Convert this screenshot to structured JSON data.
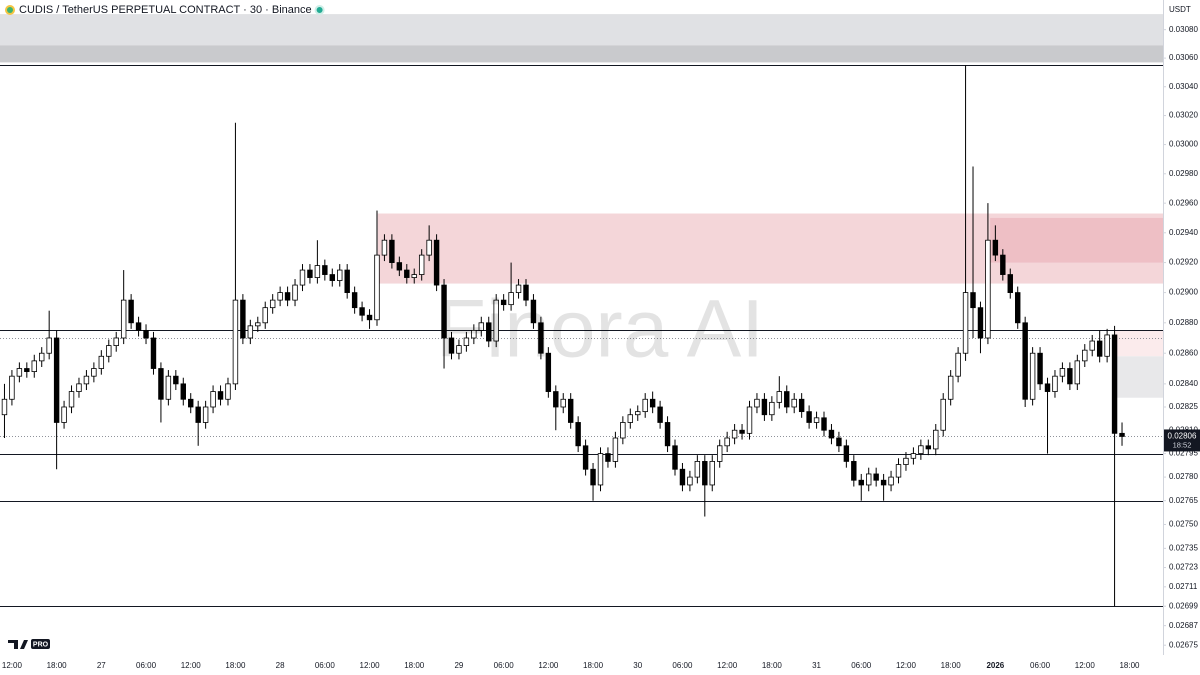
{
  "chart_data": {
    "type": "candlestick",
    "title": "CUDIS / TetherUS PERPETUAL CONTRACT · 30 · Binance",
    "y_unit": "USDT",
    "watermark": "Finora AI",
    "logo_badge": "PRO",
    "countdown": "18:52",
    "log_scale": true,
    "grid": false,
    "up_color": "#ffffff",
    "down_color": "#000000",
    "xlim": [
      -1.6,
      154.5
    ],
    "ylim": [
      0.02669,
      0.03101
    ],
    "yticks": [
      {
        "value": 0.0308,
        "label": "0.03080"
      },
      {
        "value": 0.0306,
        "label": "0.03060"
      },
      {
        "value": 0.0304,
        "label": "0.03040"
      },
      {
        "value": 0.0302,
        "label": "0.03020"
      },
      {
        "value": 0.03,
        "label": "0.03000"
      },
      {
        "value": 0.0298,
        "label": "0.02980"
      },
      {
        "value": 0.0296,
        "label": "0.02960"
      },
      {
        "value": 0.0294,
        "label": "0.02940"
      },
      {
        "value": 0.0292,
        "label": "0.02920"
      },
      {
        "value": 0.029,
        "label": "0.02900"
      },
      {
        "value": 0.0288,
        "label": "0.02880"
      },
      {
        "value": 0.0286,
        "label": "0.02860"
      },
      {
        "value": 0.0284,
        "label": "0.02840"
      },
      0.02825,
      {
        "value": 0.0281,
        "label": "0.02810"
      },
      0.02795,
      {
        "value": 0.0278,
        "label": "0.02780"
      },
      0.02765,
      {
        "value": 0.0275,
        "label": "0.02750"
      },
      0.02735,
      0.02723,
      0.02711,
      0.02699,
      0.02687,
      0.02675
    ],
    "xticks": [
      {
        "value": 0,
        "label": "12:00"
      },
      {
        "value": 6,
        "label": "18:00"
      },
      {
        "value": 12,
        "label": "27"
      },
      {
        "value": 18,
        "label": "06:00"
      },
      {
        "value": 24,
        "label": "12:00"
      },
      {
        "value": 30,
        "label": "18:00"
      },
      {
        "value": 36,
        "label": "28"
      },
      {
        "value": 42,
        "label": "06:00"
      },
      {
        "value": 48,
        "label": "12:00"
      },
      {
        "value": 54,
        "label": "18:00"
      },
      {
        "value": 60,
        "label": "29"
      },
      {
        "value": 66,
        "label": "06:00"
      },
      {
        "value": 72,
        "label": "12:00"
      },
      {
        "value": 78,
        "label": "18:00"
      },
      {
        "value": 84,
        "label": "30"
      },
      {
        "value": 90,
        "label": "06:00"
      },
      {
        "value": 96,
        "label": "12:00"
      },
      {
        "value": 102,
        "label": "18:00"
      },
      {
        "value": 108,
        "label": "31"
      },
      {
        "value": 114,
        "label": "06:00"
      },
      {
        "value": 120,
        "label": "12:00"
      },
      {
        "value": 126,
        "label": "18:00"
      },
      {
        "value": 132,
        "label": "2026"
      },
      {
        "value": 138,
        "label": "06:00"
      },
      {
        "value": 144,
        "label": "12:00"
      },
      {
        "value": 150,
        "label": "18:00"
      }
    ],
    "x": [
      -1,
      0,
      1,
      2,
      3,
      4,
      5,
      6,
      7,
      8,
      9,
      10,
      11,
      12,
      13,
      14,
      15,
      16,
      17,
      18,
      19,
      20,
      21,
      22,
      23,
      24,
      25,
      26,
      27,
      28,
      29,
      30,
      31,
      32,
      33,
      34,
      35,
      36,
      37,
      38,
      39,
      40,
      41,
      42,
      43,
      44,
      45,
      46,
      47,
      48,
      49,
      50,
      51,
      52,
      53,
      54,
      55,
      56,
      57,
      58,
      59,
      60,
      61,
      62,
      63,
      64,
      65,
      66,
      67,
      68,
      69,
      70,
      71,
      72,
      73,
      74,
      75,
      76,
      77,
      78,
      79,
      80,
      81,
      82,
      83,
      84,
      85,
      86,
      87,
      88,
      89,
      90,
      91,
      92,
      93,
      94,
      95,
      96,
      97,
      98,
      99,
      100,
      101,
      102,
      103,
      104,
      105,
      106,
      107,
      108,
      109,
      110,
      111,
      112,
      113,
      114,
      115,
      116,
      117,
      118,
      119,
      120,
      121,
      122,
      123,
      124,
      125,
      126,
      127,
      128,
      129,
      130,
      131,
      132,
      133,
      134,
      135,
      136,
      137,
      138,
      139,
      140,
      141,
      142,
      143,
      144,
      145,
      146,
      147,
      148,
      149
    ],
    "open": [
      0.0282,
      0.0283,
      0.02845,
      0.0285,
      0.02848,
      0.02855,
      0.0286,
      0.0287,
      0.02815,
      0.02825,
      0.02835,
      0.0284,
      0.02845,
      0.0285,
      0.02858,
      0.02865,
      0.0287,
      0.02895,
      0.0288,
      0.02875,
      0.0287,
      0.0285,
      0.0283,
      0.02845,
      0.0284,
      0.0283,
      0.02825,
      0.02815,
      0.02825,
      0.02835,
      0.0283,
      0.0284,
      0.02895,
      0.0287,
      0.02878,
      0.0288,
      0.0289,
      0.02895,
      0.029,
      0.02895,
      0.02905,
      0.02915,
      0.0291,
      0.02918,
      0.02912,
      0.02908,
      0.02915,
      0.029,
      0.0289,
      0.02885,
      0.02882,
      0.02925,
      0.02935,
      0.0292,
      0.02915,
      0.0291,
      0.02912,
      0.02925,
      0.02935,
      0.02905,
      0.0287,
      0.0286,
      0.02865,
      0.0287,
      0.02875,
      0.0288,
      0.02868,
      0.02895,
      0.02892,
      0.029,
      0.02905,
      0.02895,
      0.0288,
      0.0286,
      0.02835,
      0.02825,
      0.0283,
      0.02815,
      0.028,
      0.02785,
      0.02775,
      0.02795,
      0.0279,
      0.02805,
      0.02815,
      0.0282,
      0.02822,
      0.0283,
      0.02825,
      0.02815,
      0.028,
      0.02785,
      0.02775,
      0.0278,
      0.0279,
      0.02775,
      0.0279,
      0.028,
      0.02805,
      0.0281,
      0.02808,
      0.02825,
      0.0283,
      0.0282,
      0.02828,
      0.02835,
      0.02825,
      0.0283,
      0.02822,
      0.02815,
      0.02818,
      0.0281,
      0.02805,
      0.028,
      0.0279,
      0.02778,
      0.02775,
      0.02782,
      0.02778,
      0.02775,
      0.0278,
      0.02788,
      0.02792,
      0.02795,
      0.028,
      0.02798,
      0.0281,
      0.0283,
      0.02845,
      0.0286,
      0.029,
      0.0289,
      0.0287,
      0.02935,
      0.02925,
      0.02912,
      0.029,
      0.0288,
      0.0283,
      0.0286,
      0.0284,
      0.02835,
      0.02845,
      0.0285,
      0.0284,
      0.02855,
      0.02862,
      0.02868,
      0.02858,
      0.02872,
      0.02808
    ],
    "high": [
      0.0284,
      0.02849,
      0.02854,
      0.02854,
      0.02859,
      0.02864,
      0.02888,
      0.02875,
      0.02829,
      0.02839,
      0.02844,
      0.02849,
      0.02854,
      0.02862,
      0.02869,
      0.02874,
      0.02915,
      0.02899,
      0.02884,
      0.02879,
      0.02874,
      0.02854,
      0.02849,
      0.02849,
      0.02844,
      0.02834,
      0.02829,
      0.02829,
      0.02839,
      0.02839,
      0.02844,
      0.03015,
      0.02899,
      0.02882,
      0.02884,
      0.02894,
      0.02899,
      0.02904,
      0.02904,
      0.02909,
      0.02919,
      0.02919,
      0.02935,
      0.02922,
      0.02916,
      0.02919,
      0.02919,
      0.02904,
      0.02894,
      0.02889,
      0.02955,
      0.02939,
      0.02939,
      0.02924,
      0.02919,
      0.02916,
      0.02929,
      0.02945,
      0.02939,
      0.02909,
      0.02874,
      0.02869,
      0.02874,
      0.02879,
      0.02884,
      0.02884,
      0.02899,
      0.02899,
      0.0292,
      0.02909,
      0.02909,
      0.02899,
      0.02884,
      0.02864,
      0.02839,
      0.02834,
      0.02834,
      0.02819,
      0.02804,
      0.02789,
      0.02799,
      0.02799,
      0.02809,
      0.02819,
      0.02824,
      0.02826,
      0.02834,
      0.02835,
      0.02829,
      0.02819,
      0.02804,
      0.02789,
      0.02784,
      0.02794,
      0.02794,
      0.02794,
      0.02804,
      0.02809,
      0.02814,
      0.02814,
      0.02829,
      0.02834,
      0.02834,
      0.02832,
      0.02845,
      0.02839,
      0.02834,
      0.02834,
      0.02826,
      0.02822,
      0.02822,
      0.02814,
      0.02809,
      0.02804,
      0.02794,
      0.02782,
      0.02786,
      0.02786,
      0.02782,
      0.02784,
      0.02792,
      0.02796,
      0.02799,
      0.02804,
      0.02804,
      0.02814,
      0.02834,
      0.02849,
      0.02864,
      0.03055,
      0.02985,
      0.02894,
      0.0296,
      0.02945,
      0.02929,
      0.02916,
      0.02904,
      0.02884,
      0.02864,
      0.02864,
      0.02844,
      0.02849,
      0.02854,
      0.02854,
      0.02859,
      0.02866,
      0.02872,
      0.02875,
      0.02876,
      0.02878,
      0.02815
    ],
    "low": [
      0.02805,
      0.02826,
      0.02841,
      0.02844,
      0.02844,
      0.02851,
      0.02856,
      0.02785,
      0.02811,
      0.02821,
      0.02831,
      0.02836,
      0.02841,
      0.02846,
      0.02854,
      0.02861,
      0.02866,
      0.02876,
      0.02871,
      0.02866,
      0.02846,
      0.02815,
      0.02826,
      0.02836,
      0.02826,
      0.02821,
      0.028,
      0.02811,
      0.02821,
      0.02826,
      0.02826,
      0.02836,
      0.02866,
      0.02866,
      0.02874,
      0.02876,
      0.02886,
      0.02891,
      0.02891,
      0.02891,
      0.02901,
      0.02906,
      0.02906,
      0.02908,
      0.02904,
      0.02904,
      0.02896,
      0.02886,
      0.02881,
      0.02876,
      0.02878,
      0.02921,
      0.02916,
      0.02911,
      0.02906,
      0.02906,
      0.02908,
      0.02921,
      0.02901,
      0.0285,
      0.02856,
      0.02856,
      0.02861,
      0.02866,
      0.02871,
      0.02864,
      0.02864,
      0.02888,
      0.02888,
      0.02896,
      0.02891,
      0.02876,
      0.02856,
      0.02831,
      0.0281,
      0.02821,
      0.02811,
      0.02796,
      0.02781,
      0.02765,
      0.02771,
      0.02786,
      0.02786,
      0.02801,
      0.02811,
      0.02816,
      0.02818,
      0.02821,
      0.02811,
      0.02796,
      0.02781,
      0.02771,
      0.02771,
      0.02776,
      0.02755,
      0.02771,
      0.02786,
      0.02796,
      0.02801,
      0.02804,
      0.02804,
      0.02821,
      0.02816,
      0.02816,
      0.02824,
      0.02821,
      0.02821,
      0.02818,
      0.02811,
      0.02811,
      0.02806,
      0.02801,
      0.02796,
      0.02786,
      0.02774,
      0.02765,
      0.02771,
      0.02774,
      0.02765,
      0.02771,
      0.02776,
      0.02784,
      0.02788,
      0.02791,
      0.02794,
      0.02794,
      0.02806,
      0.02826,
      0.02841,
      0.02855,
      0.0287,
      0.0286,
      0.02866,
      0.02921,
      0.02908,
      0.02896,
      0.02876,
      0.02825,
      0.02826,
      0.02836,
      0.02795,
      0.02831,
      0.02841,
      0.02836,
      0.02836,
      0.02851,
      0.02858,
      0.02854,
      0.02854,
      0.02699,
      0.028
    ],
    "close": [
      0.0283,
      0.02845,
      0.0285,
      0.02848,
      0.02855,
      0.0286,
      0.0287,
      0.02815,
      0.02825,
      0.02835,
      0.0284,
      0.02845,
      0.0285,
      0.02858,
      0.02865,
      0.0287,
      0.02895,
      0.0288,
      0.02875,
      0.0287,
      0.0285,
      0.0283,
      0.02845,
      0.0284,
      0.0283,
      0.02825,
      0.02815,
      0.02825,
      0.02835,
      0.0283,
      0.0284,
      0.02895,
      0.0287,
      0.02878,
      0.0288,
      0.0289,
      0.02895,
      0.029,
      0.02895,
      0.02905,
      0.02915,
      0.0291,
      0.02918,
      0.02912,
      0.02908,
      0.02915,
      0.029,
      0.0289,
      0.02885,
      0.02882,
      0.02925,
      0.02935,
      0.0292,
      0.02915,
      0.0291,
      0.02912,
      0.02925,
      0.02935,
      0.02905,
      0.0287,
      0.0286,
      0.02865,
      0.0287,
      0.02875,
      0.0288,
      0.02868,
      0.02895,
      0.02892,
      0.029,
      0.02905,
      0.02895,
      0.0288,
      0.0286,
      0.02835,
      0.02825,
      0.0283,
      0.02815,
      0.028,
      0.02785,
      0.02775,
      0.02795,
      0.0279,
      0.02805,
      0.02815,
      0.0282,
      0.02822,
      0.0283,
      0.02825,
      0.02815,
      0.028,
      0.02785,
      0.02775,
      0.0278,
      0.0279,
      0.02775,
      0.0279,
      0.028,
      0.02805,
      0.0281,
      0.02808,
      0.02825,
      0.0283,
      0.0282,
      0.02828,
      0.02835,
      0.02825,
      0.0283,
      0.02822,
      0.02815,
      0.02818,
      0.0281,
      0.02805,
      0.028,
      0.0279,
      0.02778,
      0.02775,
      0.02782,
      0.02778,
      0.02775,
      0.0278,
      0.02788,
      0.02792,
      0.02795,
      0.028,
      0.02798,
      0.0281,
      0.0283,
      0.02845,
      0.0286,
      0.029,
      0.0289,
      0.0287,
      0.02935,
      0.02925,
      0.02912,
      0.029,
      0.0288,
      0.0283,
      0.0286,
      0.0284,
      0.02835,
      0.02845,
      0.0285,
      0.0284,
      0.02855,
      0.02862,
      0.02868,
      0.02858,
      0.02872,
      0.02808,
      0.02806
    ],
    "zones": [
      {
        "x0": -1.6,
        "y0": 0.03069,
        "y1": 0.03091,
        "color": "#e0e1e4"
      },
      {
        "x0": -1.6,
        "y0": 0.03057,
        "y1": 0.03069,
        "color": "#c9cacd"
      },
      {
        "x0": 49.1,
        "y0": 0.02906,
        "y1": 0.02953,
        "color": "rgba(210,90,105,0.25)"
      },
      {
        "x0": 131.3,
        "y0": 0.0292,
        "y1": 0.0295,
        "color": "rgba(210,90,105,0.18)"
      },
      {
        "x0": 148,
        "y0": 0.02858,
        "y1": 0.02875,
        "color": "rgba(230,120,130,0.15)"
      },
      {
        "x0": 148,
        "y0": 0.02831,
        "y1": 0.02858,
        "color": "#e8e8ea"
      }
    ],
    "levels": [
      0.03055,
      0.02875,
      0.02795,
      0.02765,
      0.02699
    ],
    "dotted_levels": [
      0.0287,
      0.02806
    ]
  }
}
